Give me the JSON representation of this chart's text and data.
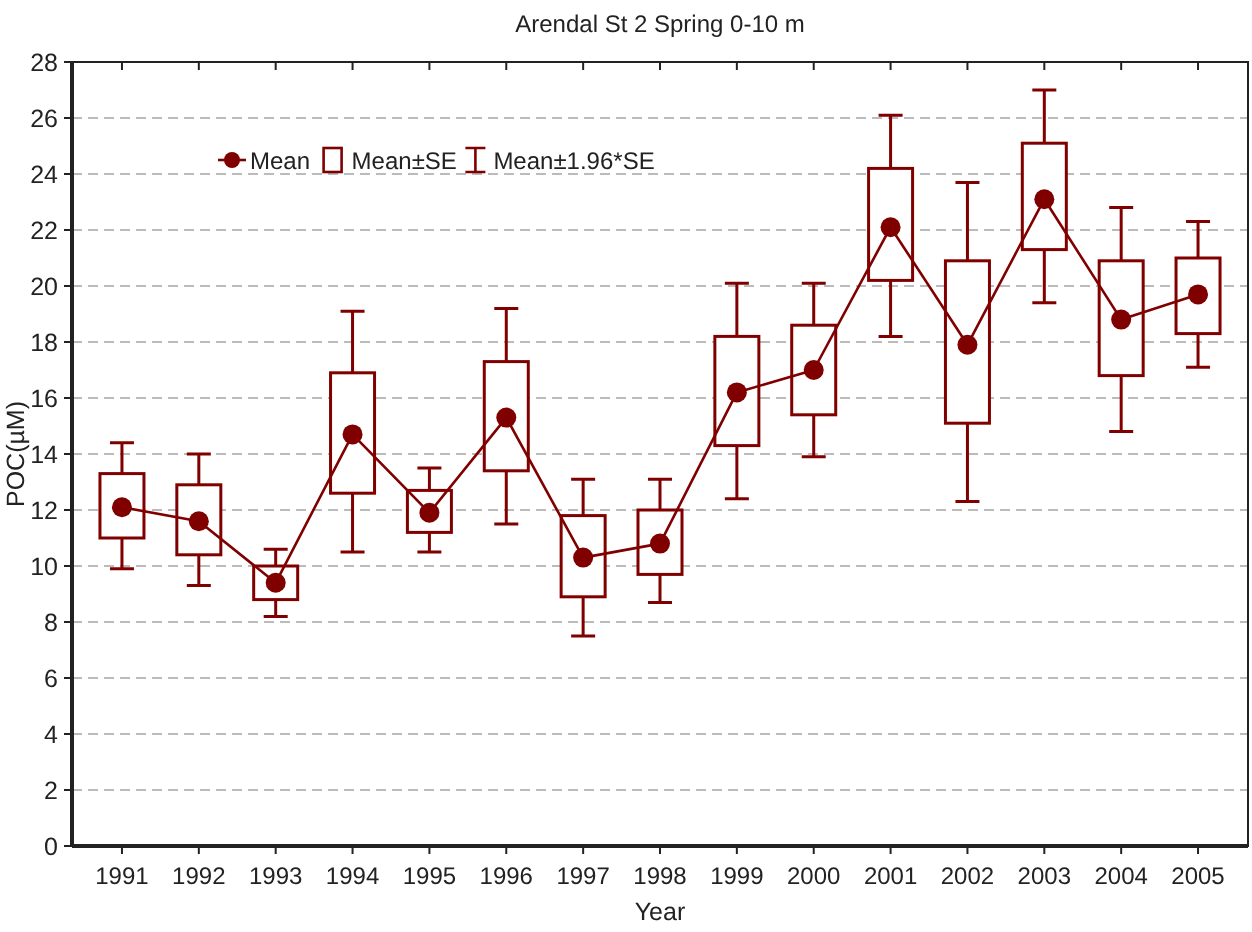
{
  "chart_data": {
    "type": "line",
    "title": "Arendal St 2 Spring 0-10 m",
    "xlabel": "Year",
    "ylabel": "POC(µM)",
    "categories": [
      "1991",
      "1992",
      "1993",
      "1994",
      "1995",
      "1996",
      "1997",
      "1998",
      "1999",
      "2000",
      "2001",
      "2002",
      "2003",
      "2004",
      "2005"
    ],
    "ylim": [
      0,
      28
    ],
    "yticks": [
      0,
      2,
      4,
      6,
      8,
      10,
      12,
      14,
      16,
      18,
      20,
      22,
      24,
      26,
      28
    ],
    "grid": "y",
    "legend": "top left",
    "series": [
      {
        "name": "Mean",
        "color": "#800000",
        "marker": "circle",
        "line_style": "solid",
        "values": [
          12.1,
          11.6,
          9.4,
          14.7,
          11.9,
          15.3,
          10.3,
          10.8,
          16.2,
          17.0,
          22.1,
          17.9,
          23.1,
          18.8,
          19.7
        ]
      },
      {
        "name": "Mean±SE",
        "type": "bar",
        "color": "#800000",
        "base": [
          11.0,
          10.4,
          8.8,
          12.6,
          11.2,
          13.4,
          8.9,
          9.7,
          14.3,
          15.4,
          20.2,
          15.1,
          21.3,
          16.8,
          18.3
        ],
        "values": [
          2.3,
          2.5,
          1.2,
          4.3,
          1.5,
          3.9,
          2.9,
          2.3,
          3.9,
          3.2,
          4.0,
          5.8,
          3.8,
          4.1,
          2.7
        ]
      },
      {
        "name": "Mean±1.96*SE",
        "type": "scatter",
        "color": "#800000",
        "marker": "circle",
        "values": [
          12.1,
          11.6,
          9.4,
          14.7,
          11.9,
          15.3,
          10.3,
          10.8,
          16.2,
          17.0,
          22.1,
          17.9,
          23.1,
          18.8,
          19.7
        ],
        "errors": [
          [
            9.9,
            14.4
          ],
          [
            9.3,
            14.0
          ],
          [
            8.2,
            10.6
          ],
          [
            10.5,
            19.1
          ],
          [
            10.5,
            13.5
          ],
          [
            11.5,
            19.2
          ],
          [
            7.5,
            13.1
          ],
          [
            8.7,
            13.1
          ],
          [
            12.4,
            20.1
          ],
          [
            13.9,
            20.1
          ],
          [
            18.2,
            26.1
          ],
          [
            12.3,
            23.7
          ],
          [
            19.4,
            27.0
          ],
          [
            14.8,
            22.8
          ],
          [
            17.1,
            22.3
          ]
        ]
      }
    ]
  }
}
